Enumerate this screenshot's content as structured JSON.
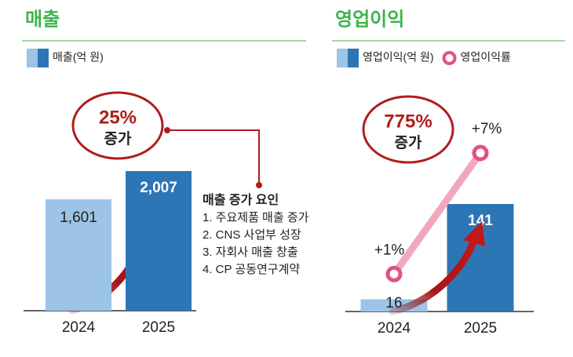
{
  "chart_data": [
    {
      "type": "bar",
      "title": "매출",
      "categories": [
        "2024",
        "2025"
      ],
      "series": [
        {
          "name": "매출(억 원)",
          "colors": [
            "#9dc3e6",
            "#2e75b6"
          ],
          "values": [
            1601,
            2007
          ],
          "value_labels": [
            "1,601",
            "2,007"
          ]
        }
      ],
      "callout": [
        "25%",
        "증가"
      ],
      "annotation": {
        "title": "매출 증가 요인",
        "items": [
          "1.  주요제품 매출 증가",
          "2.  CNS 사업부 성장",
          "3.  자회사 매출 창출",
          "4.  CP 공동연구계약"
        ]
      }
    },
    {
      "type": "bar_line",
      "title": "영업이익",
      "categories": [
        "2024",
        "2025"
      ],
      "series": [
        {
          "name": "영업이익(억 원)",
          "colors": [
            "#9dc3e6",
            "#2e75b6"
          ],
          "values": [
            16,
            141
          ]
        },
        {
          "name": "영업이익률",
          "color": "#f2a7bd",
          "marker_color": "#e0528a",
          "values": [
            1,
            7
          ],
          "value_labels": [
            "+1%",
            "+7%"
          ]
        }
      ],
      "callout": [
        "775%",
        "증가"
      ]
    }
  ]
}
